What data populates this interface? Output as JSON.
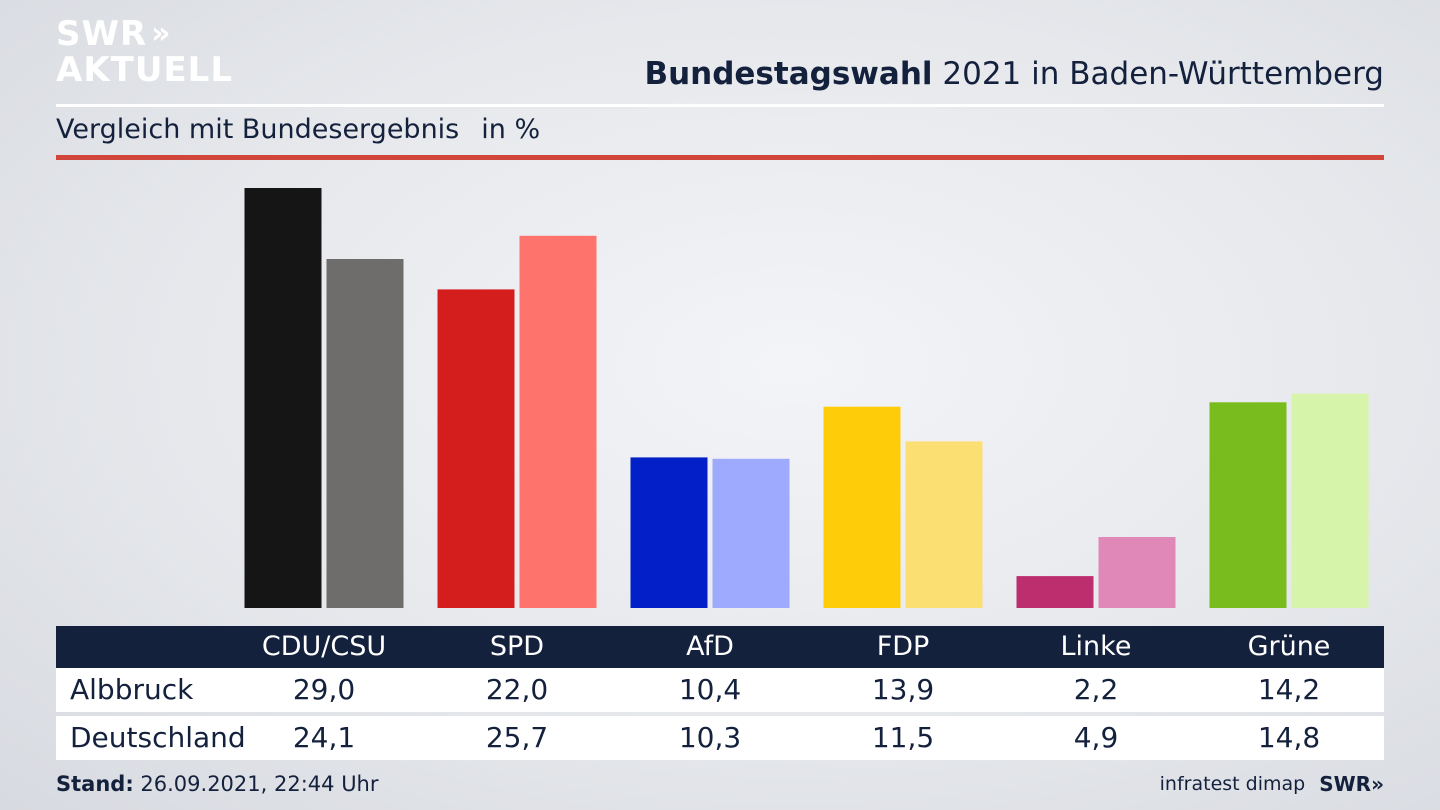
{
  "logo": {
    "line1": "SWR",
    "line1_chevrons": "»",
    "line2": "AKTUELL"
  },
  "header": {
    "title_bold": "Bundestagswahl",
    "title_rest": "2021 in Baden-Württemberg",
    "subtitle": "Vergleich mit Bundesergebnis",
    "unit": "in %"
  },
  "chart_data": {
    "type": "bar",
    "categories": [
      "CDU/CSU",
      "SPD",
      "AfD",
      "FDP",
      "Linke",
      "Grüne"
    ],
    "series": [
      {
        "name": "Albbruck",
        "values": [
          29.0,
          22.0,
          10.4,
          13.9,
          2.2,
          14.2
        ],
        "colors": [
          "#151515",
          "#d41e1e",
          "#0320c8",
          "#ffcc0a",
          "#bc2e6e",
          "#78bc1e"
        ]
      },
      {
        "name": "Deutschland",
        "values": [
          24.1,
          25.7,
          10.3,
          11.5,
          4.9,
          14.8
        ],
        "colors": [
          "#6f6d6b",
          "#fe736c",
          "#9eaafe",
          "#fcdf72",
          "#e089b8",
          "#d6f5aa"
        ]
      }
    ],
    "ylim": [
      0,
      29
    ],
    "grid": false,
    "legend": "table-below"
  },
  "table": {
    "headers": [
      "CDU/CSU",
      "SPD",
      "AfD",
      "FDP",
      "Linke",
      "Grüne"
    ],
    "rows": [
      {
        "label": "Albbruck",
        "values": [
          "29,0",
          "22,0",
          "10,4",
          "13,9",
          "2,2",
          "14,2"
        ]
      },
      {
        "label": "Deutschland",
        "values": [
          "24,1",
          "25,7",
          "10,3",
          "11,5",
          "4,9",
          "14,8"
        ]
      }
    ]
  },
  "footer": {
    "stand_label": "Stand:",
    "stand_value": "26.09.2021, 22:44 Uhr",
    "source": "infratest dimap",
    "brand": "SWR",
    "brand_chevrons": "»"
  },
  "colors": {
    "navy": "#14213d",
    "accent_red": "#d2453b"
  }
}
